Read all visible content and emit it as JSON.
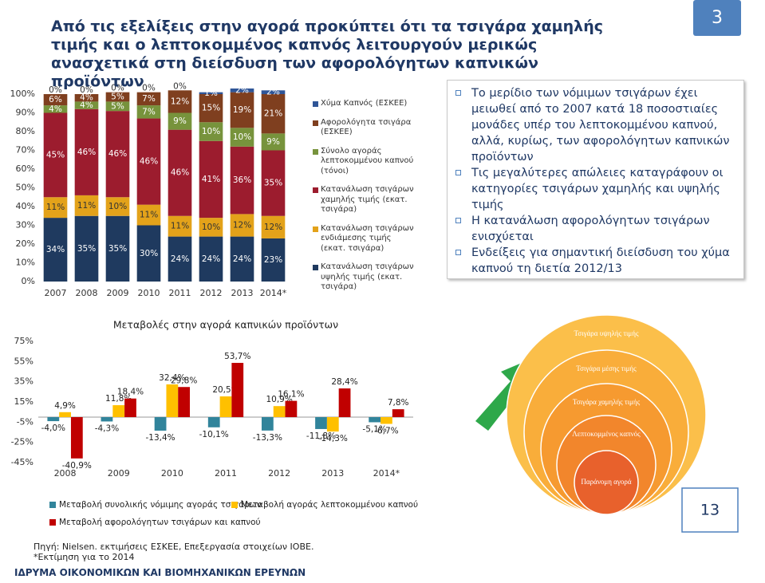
{
  "title": "Από τις εξελίξεις στην αγορά προκύπτει ότι τα τσιγάρα χαμηλής τιμής και ο λεπτοκομμένος καπνός λειτουργούν μερικώς ανασχετικά στη διείσδυση των αφορολόγητων καπνικών προϊόντων",
  "slide_number_top": "3",
  "slide_number_bottom": "13",
  "bullets": [
    "Το μερίδιο των νόμιμων τσιγάρων έχει μειωθεί από το 2007 κατά 18 ποσοστιαίες μονάδες υπέρ του λεπτοκομμένου καπνού, αλλά, κυρίως, των αφορολόγητων καπνικών προϊόντων",
    "Τις μεγαλύτερες απώλειες καταγράφουν οι κατηγορίες τσιγάρων χαμηλής και υψηλής τιμής",
    "Η κατανάλωση αφορολόγητων τσιγάρων ενισχύεται",
    "Ενδείξεις για σημαντική διείσδυση του χύμα καπνού τη διετία 2012/13"
  ],
  "chart_data": [
    {
      "type": "bar",
      "stacked": true,
      "categories": [
        "2007",
        "2008",
        "2009",
        "2010",
        "2011",
        "2012",
        "2013",
        "2014*"
      ],
      "ylim": [
        0,
        100
      ],
      "yticks": [
        {
          "value": 0,
          "label": "0%"
        },
        {
          "value": 10,
          "label": "10%"
        },
        {
          "value": 20,
          "label": "20%"
        },
        {
          "value": 30,
          "label": "30%"
        },
        {
          "value": 40,
          "label": "40%"
        },
        {
          "value": 50,
          "label": "50%"
        },
        {
          "value": 60,
          "label": "60%"
        },
        {
          "value": 70,
          "label": "70%"
        },
        {
          "value": 80,
          "label": "80%"
        },
        {
          "value": 90,
          "label": "90%"
        },
        {
          "value": 100,
          "label": "100%"
        }
      ],
      "series": [
        {
          "name": "Κατανάλωση τσιγάρων υψηλής τιμής (εκατ. τσιγάρα)",
          "color": "#1f3a5f",
          "values": [
            34,
            35,
            35,
            30,
            24,
            24,
            24,
            23
          ],
          "value_labels": [
            "34%",
            "35%",
            "35%",
            "30%",
            "24%",
            "24%",
            "24%",
            "23%"
          ]
        },
        {
          "name": "Κατανάλωση τσιγάρων ενδιάμεσης τιμής (εκατ. τσιγάρα)",
          "color": "#e3a21a",
          "values": [
            11,
            11,
            10,
            11,
            11,
            10,
            12,
            12
          ],
          "value_labels": [
            "11%",
            "11%",
            "10%",
            "11%",
            "11%",
            "10%",
            "12%",
            "12%"
          ]
        },
        {
          "name": "Κατανάλωση τσιγάρων χαμηλής τιμής (εκατ. τσιγάρα)",
          "color": "#9c1c2e",
          "values": [
            45,
            46,
            46,
            46,
            46,
            41,
            36,
            35
          ],
          "value_labels": [
            "45%",
            "46%",
            "46%",
            "46%",
            "46%",
            "41%",
            "36%",
            "35%"
          ]
        },
        {
          "name": "Σύνολο αγοράς λεπτοκομμένου καπνού (τόνοι)",
          "color": "#77933c",
          "values": [
            4,
            4,
            5,
            7,
            9,
            10,
            10,
            9
          ],
          "value_labels": [
            "4%",
            "4%",
            "5%",
            "7%",
            "9%",
            "10%",
            "10%",
            "9%"
          ]
        },
        {
          "name": "Αφορολόγητα τσιγάρα (ΕΣΚΕΕ)",
          "color": "#7f3f1f",
          "values": [
            6,
            4,
            5,
            7,
            12,
            15,
            19,
            21
          ],
          "value_labels": [
            "6%",
            "4%",
            "5%",
            "7%",
            "12%",
            "15%",
            "19%",
            "21%"
          ]
        },
        {
          "name": "Χύμα Καπνός (ΕΣΚΕΕ)",
          "color": "#2f5597",
          "values": [
            0,
            0,
            0,
            0,
            0,
            1,
            2,
            2
          ],
          "value_labels": [
            "0%",
            "0%",
            "0%",
            "0%",
            "0%",
            "1%",
            "2%",
            "2%"
          ]
        }
      ]
    },
    {
      "type": "bar",
      "stacked": false,
      "title": "Μεταβολές στην αγορά καπνικών προϊόντων",
      "categories": [
        "2008",
        "2009",
        "2010",
        "2011",
        "2012",
        "2013",
        "2014*"
      ],
      "ylim": [
        -45,
        75
      ],
      "yticks": [
        {
          "value": -45,
          "label": "-45%"
        },
        {
          "value": -25,
          "label": "-25%"
        },
        {
          "value": -5,
          "label": "-5%"
        },
        {
          "value": 15,
          "label": "15%"
        },
        {
          "value": 35,
          "label": "35%"
        },
        {
          "value": 55,
          "label": "55%"
        },
        {
          "value": 75,
          "label": "75%"
        }
      ],
      "series": [
        {
          "name": "Μεταβολή συνολικής νόμιμης αγοράς τσιγάρων",
          "color": "#31849b",
          "values": [
            -4.0,
            -4.3,
            -13.4,
            -10.1,
            -13.3,
            -11.8,
            -5.1
          ],
          "value_labels": [
            "-4,0%",
            "-4,3%",
            "-13,4%",
            "-10,1%",
            "-13,3%",
            "-11,8%",
            "-5,1%"
          ]
        },
        {
          "name": "Μεταβολή αγοράς λεπτοκομμένου καπνού",
          "color": "#ffc000",
          "values": [
            4.9,
            11.8,
            32.4,
            20.5,
            10.9,
            -14.3,
            -6.7
          ],
          "value_labels": [
            "4,9%",
            "11,8%",
            "32,4%",
            "20,5%",
            "10,9%",
            "-14,3%",
            "-6,7%"
          ]
        },
        {
          "name": "Μεταβολή αφορολόγητων τσιγάρων και καπνού",
          "color": "#c00000",
          "values": [
            -40.9,
            18.4,
            29.8,
            53.7,
            16.1,
            28.4,
            7.8
          ],
          "value_labels": [
            "-40,9%",
            "18,4%",
            "29,8%",
            "53,7%",
            "16,1%",
            "28,4%",
            "7,8%"
          ]
        }
      ]
    }
  ],
  "diagram": [
    "Τσιγάρα υψηλής τιμής",
    "Τσιγάρα μέσης τιμής",
    "Τσιγάρα χαμηλής τιμής",
    "Λεπτοκομμένος καπνός",
    "Παράνομη αγορά"
  ],
  "source": "Πηγή: Nielsen. εκτιμήσεις ΕΣΚΕΕ, Επεξεργασία στοιχείων ΙΟΒΕ.",
  "note": "*Εκτίμηση για το 2014",
  "footer": "ΙΔΡΥΜΑ ΟΙΚΟΝΟΜΙΚΩΝ ΚΑΙ ΒΙΟΜΗΧΑΝΙΚΩΝ ΕΡΕΥΝΩΝ"
}
